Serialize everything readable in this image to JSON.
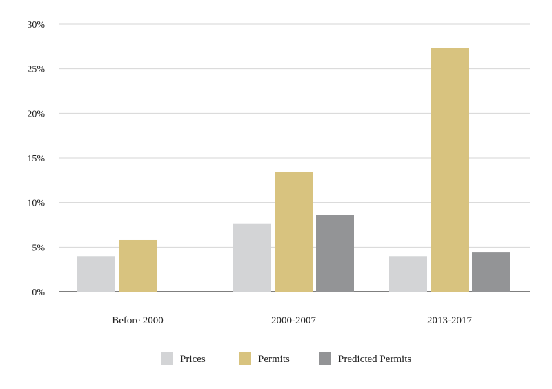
{
  "chart_data": {
    "type": "bar",
    "categories": [
      "Before 2000",
      "2000-2007",
      "2013-2017"
    ],
    "series": [
      {
        "name": "Prices",
        "color": "#d3d4d6",
        "values": [
          4.0,
          7.6,
          4.0
        ]
      },
      {
        "name": "Permits",
        "color": "#d8c37f",
        "values": [
          5.8,
          13.4,
          27.3
        ]
      },
      {
        "name": "Predicted Permits",
        "color": "#939496",
        "values": [
          null,
          8.6,
          4.4
        ]
      }
    ],
    "yticks": [
      "0%",
      "5%",
      "10%",
      "15%",
      "20%",
      "25%",
      "30%"
    ],
    "ytick_values": [
      0,
      5,
      10,
      15,
      20,
      25,
      30
    ],
    "ylim": [
      0,
      30
    ],
    "grid": true,
    "legend_position": "bottom-center"
  }
}
